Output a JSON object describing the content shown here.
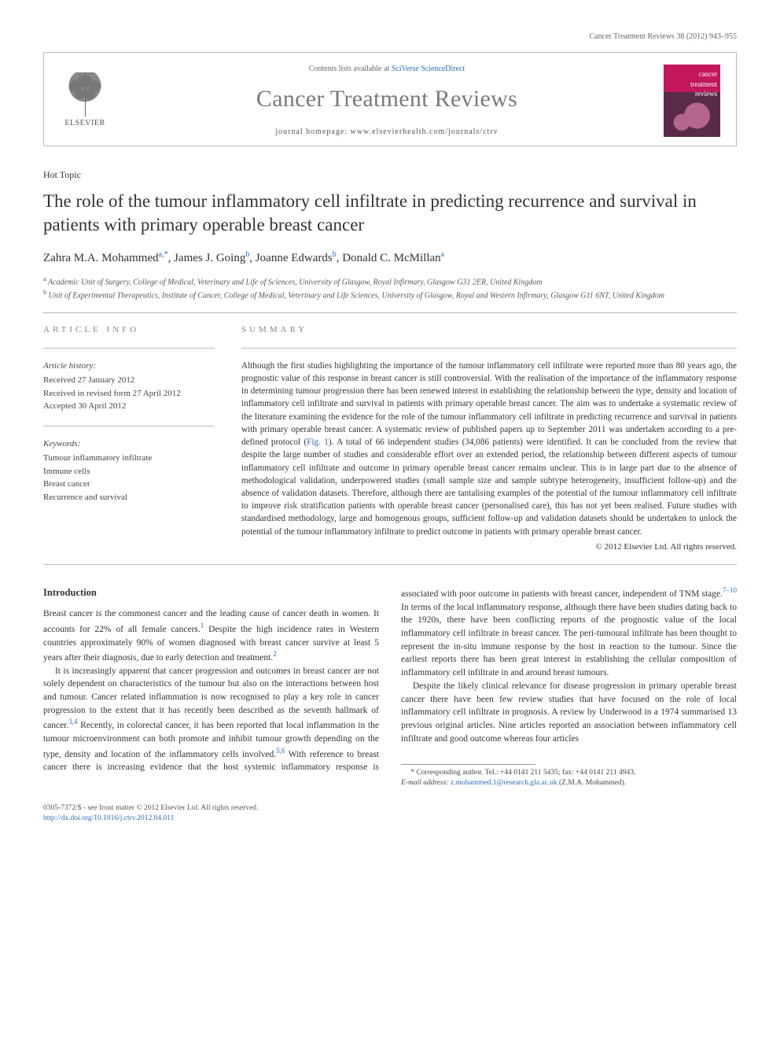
{
  "running_head": "Cancer Treatment Reviews 38 (2012) 943–955",
  "header": {
    "publisher_name": "ELSEVIER",
    "contents_prefix": "Contents lists available at ",
    "contents_link": "SciVerse ScienceDirect",
    "journal_title": "Cancer Treatment Reviews",
    "homepage_prefix": "journal homepage: ",
    "homepage_url": "www.elsevierhealth.com/journals/ctrv",
    "cover_label_line1": "cancer",
    "cover_label_line2": "treatment",
    "cover_label_line3": "reviews"
  },
  "article": {
    "category": "Hot Topic",
    "title": "The role of the tumour inflammatory cell infiltrate in predicting recurrence and survival in patients with primary operable breast cancer",
    "authors_html": "Zahra M.A. Mohammed",
    "author_sup_1": "a,",
    "author_star": "*",
    "author_2": ", James J. Going",
    "author_sup_2": "b",
    "author_3": ", Joanne Edwards",
    "author_sup_3": "b",
    "author_4": ", Donald C. McMillan",
    "author_sup_4": "a",
    "affiliations": {
      "a": "Academic Unit of Surgery, College of Medical, Veterinary and Life of Sciences, University of Glasgow, Royal Infirmary, Glasgow G31 2ER, United Kingdom",
      "b": "Unit of Experimental Therapeutics, Institute of Cancer, College of Medical, Veterinary and Life Sciences, University of Glasgow, Royal and Western Infirmary, Glasgow G11 6NT, United Kingdom"
    }
  },
  "info": {
    "label": "ARTICLE INFO",
    "history_title": "Article history:",
    "history_lines": [
      "Received 27 January 2012",
      "Received in revised form 27 April 2012",
      "Accepted 30 April 2012"
    ],
    "keywords_title": "Keywords:",
    "keywords": [
      "Tumour inflammatory infiltrate",
      "Immune cells",
      "Breast cancer",
      "Recurrence and survival"
    ]
  },
  "summary": {
    "label": "SUMMARY",
    "text_before_link": "Although the first studies highlighting the importance of the tumour inflammatory cell infiltrate were reported more than 80 years ago, the prognostic value of this response in breast cancer is still controversial. With the realisation of the importance of the inflammatory response in determining tumour progression there has been renewed interest in establishing the relationship between the type, density and location of inflammatory cell infiltrate and survival in patients with primary operable breast cancer. The aim was to undertake a systematic review of the literature examining the evidence for the role of the tumour inflammatory cell infiltrate in predicting recurrence and survival in patients with primary operable breast cancer. A systematic review of published papers up to September 2011 was undertaken according to a pre-defined protocol (",
    "fig_link": "Fig. 1",
    "text_after_link": "). A total of 66 independent studies (34,086 patients) were identified. It can be concluded from the review that despite the large number of studies and considerable effort over an extended period, the relationship between different aspects of tumour inflammatory cell infiltrate and outcome in primary operable breast cancer remains unclear. This is in large part due to the absence of methodological validation, underpowered studies (small sample size and sample subtype heterogeneity, insufficient follow-up) and the absence of validation datasets. Therefore, although there are tantalising examples of the potential of the tumour inflammatory cell infiltrate to improve risk stratification patients with operable breast cancer (personalised care), this has not yet been realised. Future studies with standardised methodology, large and homogenous groups, sufficient follow-up and validation datasets should be undertaken to unlock the potential of the tumour inflammatory infiltrate to predict outcome in patients with primary operable breast cancer.",
    "copyright": "© 2012 Elsevier Ltd. All rights reserved."
  },
  "body": {
    "intro_heading": "Introduction",
    "p1": "Breast cancer is the commonest cancer and the leading cause of cancer death in women. It accounts for 22% of all female cancers.",
    "p1_sup": "1",
    "p1b": " Despite the high incidence rates in Western countries approximately 90% of women diagnosed with breast cancer survive at least 5 years after their diagnosis, due to early detection and treatment.",
    "p1b_sup": "2",
    "p2": "It is increasingly apparent that cancer progression and outcomes in breast cancer are not solely dependent on characteristics of the tumour but also on the interactions between host and tumour. Cancer related inflammation is now recognised to play a key role in cancer progression to the extent that it has recently been described as the seventh hallmark of cancer.",
    "p2_sup": "3,4",
    "p2b": " Recently, in colorectal cancer, it has been reported that local inflammation in the tumour microenvironment can both promote and inhibit ",
    "p3a": "tumour growth depending on the type, density and location of the inflammatory cells involved.",
    "p3a_sup": "5,6",
    "p3b": " With reference to breast cancer there is increasing evidence that the host systemic inflammatory response is associated with poor outcome in patients with breast cancer, independent of TNM stage.",
    "p3b_sup": "7–10",
    "p3c": " In terms of the local inflammatory response, although there have been studies dating back to the 1920s, there have been conflicting reports of the prognostic value of the local inflammatory cell infiltrate in breast cancer. The peri-tumoural infiltrate has been thought to represent the in-situ immune response by the host in reaction to the tumour. Since the earliest reports there has been great interest in establishing the cellular composition of inflammatory cell infiltrate in and around breast tumours.",
    "p4": "Despite the likely clinical relevance for disease progression in primary operable breast cancer there have been few review studies that have focused on the role of local inflammatory cell infiltrate in prognosis. A review by Underwood in a 1974 summarised 13 previous original articles. Nine articles reported an association between inflammatory cell infiltrate and good outcome whereas four articles"
  },
  "footnote": {
    "marker": "*",
    "corr_label": " Corresponding author. Tel.: +44 0141 211 5435; fax: +44 0141 211 4943.",
    "email_label": "E-mail address: ",
    "email": "z.mohammed.1@research.gla.ac.uk",
    "email_suffix": " (Z.M.A. Mohammed)."
  },
  "bottom": {
    "line1": "0305-7372/$ - see front matter © 2012 Elsevier Ltd. All rights reserved.",
    "doi_url": "http://dx.doi.org/10.1016/j.ctrv.2012.04.011"
  },
  "colors": {
    "link": "#2a6db8",
    "text": "#333333",
    "muted": "#666666",
    "rule": "#bbbbbb",
    "cover_top": "#c2185b",
    "cover_bottom": "#5a2a4a"
  }
}
